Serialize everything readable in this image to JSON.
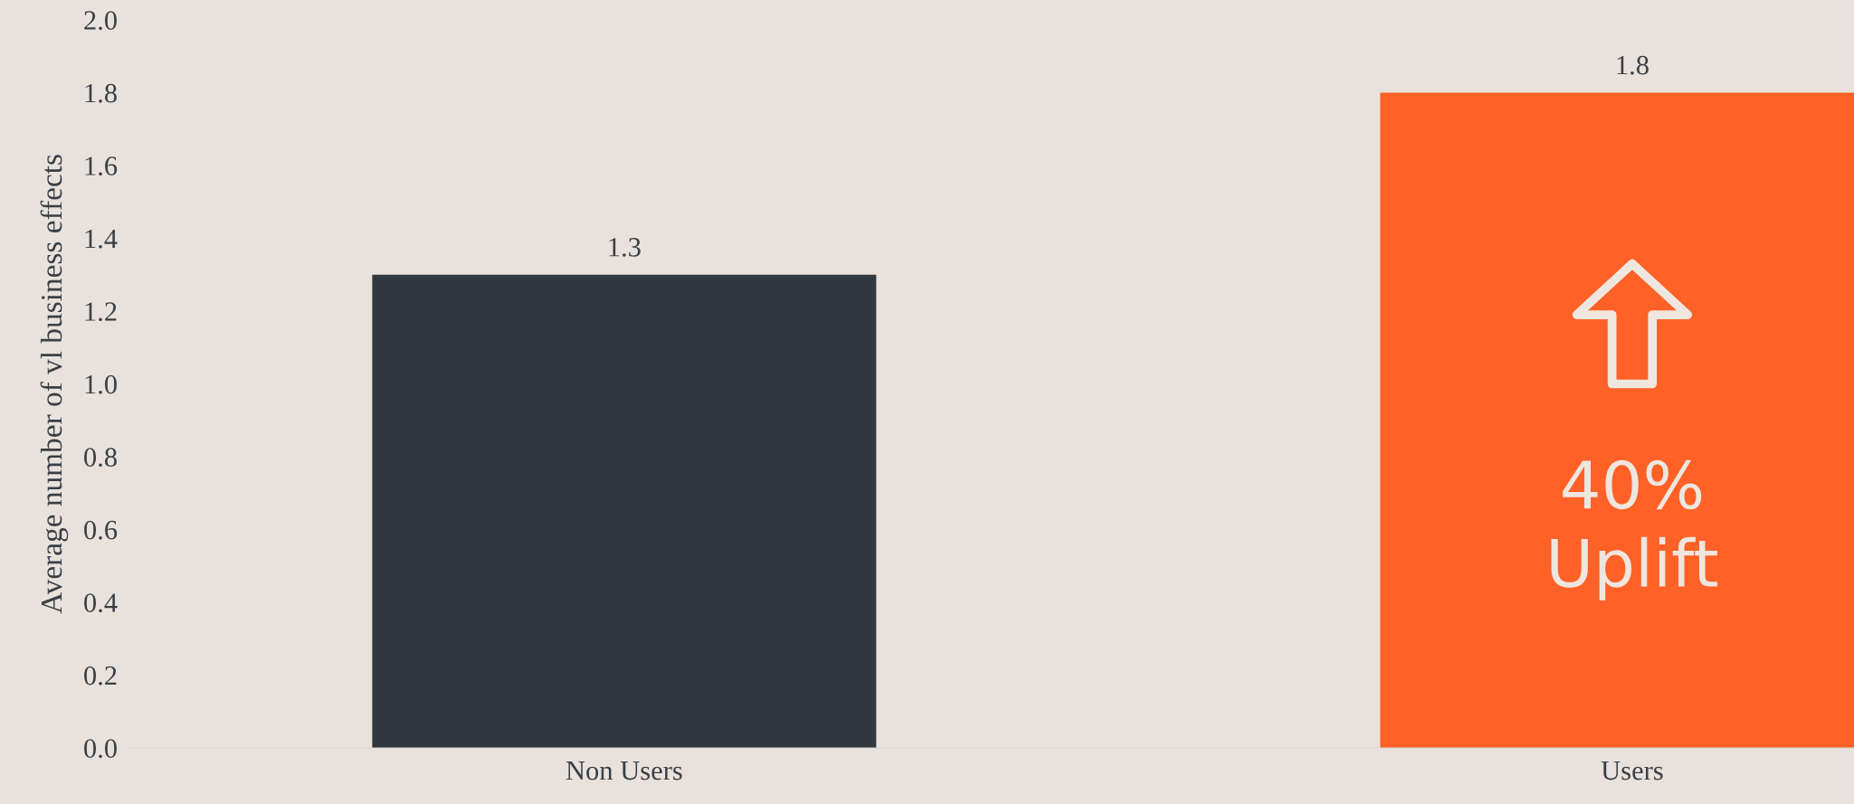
{
  "chart_data": {
    "type": "bar",
    "ylabel": "Average number of vl business effects",
    "categories": [
      "Non Users",
      "Users"
    ],
    "values": [
      1.3,
      1.8
    ],
    "colors": [
      "#31373e",
      "#ff6126"
    ],
    "ylim": [
      0,
      2.0
    ],
    "yticks": [
      {
        "value": 0,
        "label": "0.0"
      },
      {
        "value": 0.2,
        "label": "0.2"
      },
      {
        "value": 0.4,
        "label": "0.4"
      },
      {
        "value": 0.6,
        "label": "0.6"
      },
      {
        "value": 0.8,
        "label": "0.8"
      },
      {
        "value": 1.0,
        "label": "1.0"
      },
      {
        "value": 1.2,
        "label": "1.2"
      },
      {
        "value": 1.4,
        "label": "1.4"
      },
      {
        "value": 1.6,
        "label": "1.6"
      },
      {
        "value": 1.8,
        "label": "1.8"
      },
      {
        "value": 2.0,
        "label": "2.0"
      }
    ],
    "data_labels": true,
    "grid": false,
    "annotations": [
      "40%\nUplift"
    ]
  }
}
